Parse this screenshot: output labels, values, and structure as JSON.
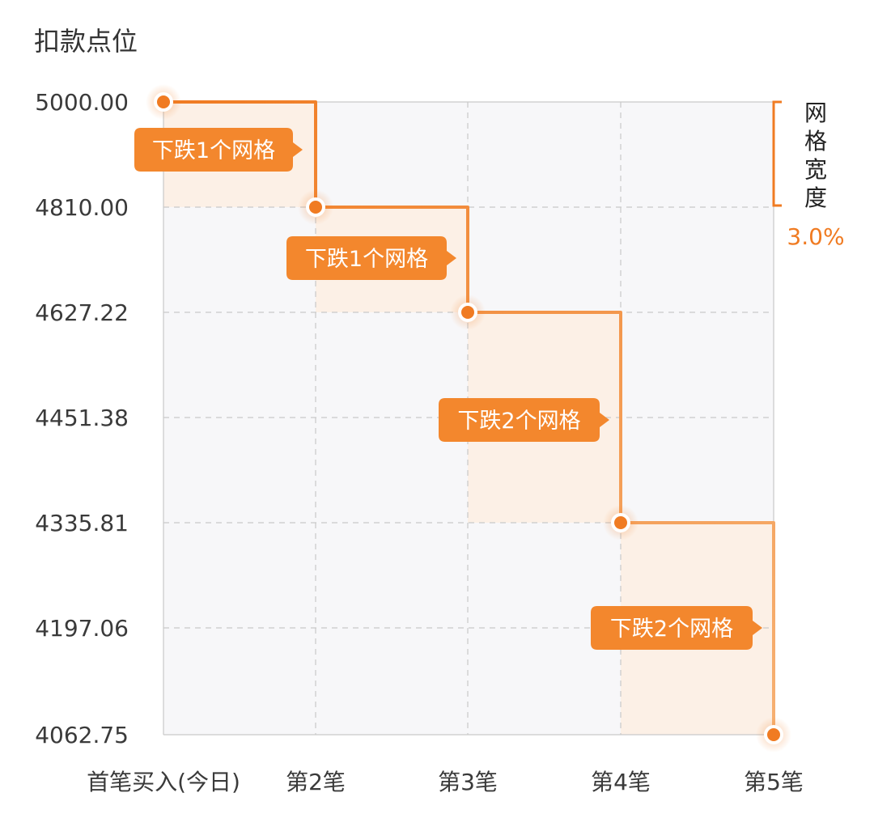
{
  "chart_data": {
    "type": "line",
    "ylabel": "扣款点位",
    "categories": [
      "首笔买入(今日)",
      "第2笔",
      "第3笔",
      "第4笔",
      "第5笔"
    ],
    "yticks": [
      "5000.00",
      "4810.00",
      "4627.22",
      "4451.38",
      "4335.81",
      "4197.06",
      "4062.75"
    ],
    "points": [
      {
        "x": "首笔买入(今日)",
        "y": 5000.0
      },
      {
        "x": "第2笔",
        "y": 4810.0
      },
      {
        "x": "第3笔",
        "y": 4627.22
      },
      {
        "x": "第4笔",
        "y": 4335.81
      },
      {
        "x": "第5笔",
        "y": 4062.75
      }
    ],
    "callouts": [
      {
        "from": 0,
        "text": "下跌1个网格"
      },
      {
        "from": 1,
        "text": "下跌1个网格"
      },
      {
        "from": 2,
        "text": "下跌2个网格"
      },
      {
        "from": 3,
        "text": "下跌2个网格"
      }
    ],
    "grid_width": {
      "label_chars": [
        "网",
        "格",
        "宽",
        "度"
      ],
      "value": "3.0%"
    },
    "grid": true,
    "colors": {
      "accent": "#f07b22",
      "accent_light": "#f7a863",
      "fill": "#fdeee3",
      "plot_bg": "#f7f7f9",
      "grid": "#c9c9c9"
    }
  }
}
